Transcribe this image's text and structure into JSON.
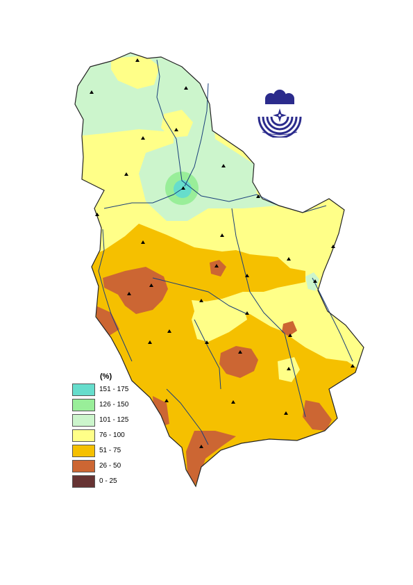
{
  "legend": {
    "title": "(%)",
    "items": [
      {
        "label": "151 - 175",
        "color": "#66ddcc"
      },
      {
        "label": "126 - 150",
        "color": "#99ee99"
      },
      {
        "label": "101 - 125",
        "color": "#ccf5cc"
      },
      {
        "label": "76 - 100",
        "color": "#ffff88"
      },
      {
        "label": "51 - 75",
        "color": "#f5c000"
      },
      {
        "label": "26 - 50",
        "color": "#cc6633"
      },
      {
        "label": "0 - 25",
        "color": "#663333"
      }
    ]
  },
  "colors": {
    "river": "#1a3f7a",
    "border": "#222222",
    "station": "#000000",
    "logo": "#2b2b8c"
  },
  "logo": {
    "icon": "hydrometeorological-service-emblem-icon"
  }
}
